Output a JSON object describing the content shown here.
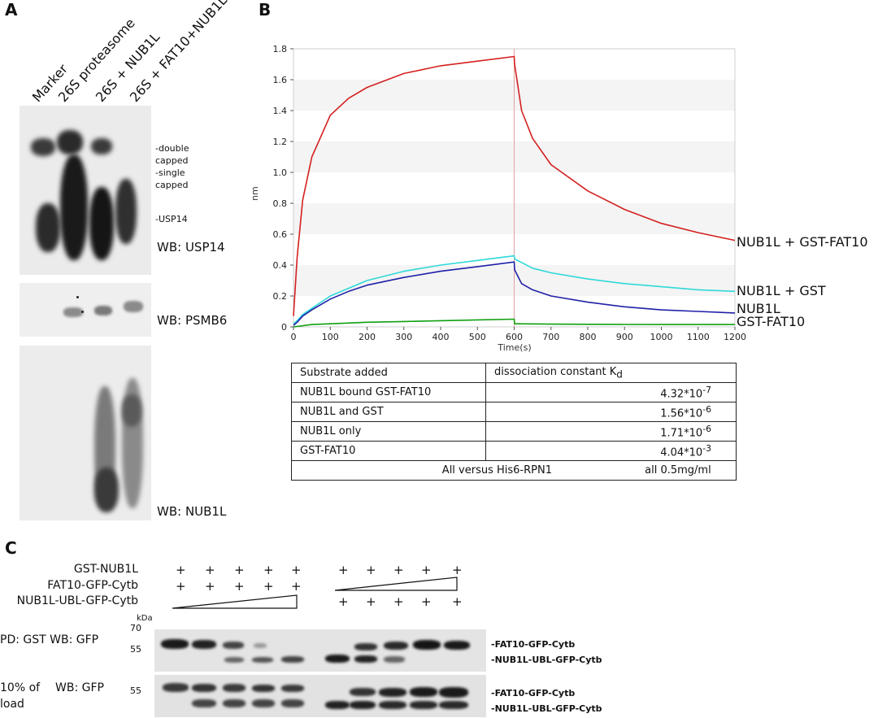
{
  "panel_a": {
    "letter": "A",
    "lanes": [
      "Marker",
      "26S proteasome",
      "26S + NUB1L",
      "26S + FAT10+NUB1L"
    ],
    "blots": [
      {
        "wb_label": "WB: USP14",
        "annotations": [
          "-double",
          "capped",
          "-single",
          "capped",
          "-USP14"
        ]
      },
      {
        "wb_label": "WB: PSMB6"
      },
      {
        "wb_label": "WB: NUB1L"
      }
    ]
  },
  "panel_b": {
    "letter": "B",
    "chart_data": {
      "type": "line",
      "title": "",
      "xlabel": "Time(s)",
      "ylabel": "nm",
      "xlim": [
        0,
        1200
      ],
      "ylim": [
        0,
        1.8
      ],
      "x_ticks": [
        "0",
        "100",
        "200",
        "300",
        "400",
        "500",
        "600",
        "700",
        "800",
        "900",
        "1000",
        "1100",
        "1200"
      ],
      "y_ticks": [
        "0",
        "0.2",
        "0.4",
        "0.6",
        "0.8",
        "1.0",
        "1.2",
        "1.4",
        "1.6",
        "1.8"
      ],
      "annotation_x": 600,
      "series": [
        {
          "name": "NUB1L + GST-FAT10",
          "color": "#d42020",
          "x": [
            0,
            10,
            25,
            50,
            100,
            150,
            200,
            300,
            400,
            500,
            600,
            601,
            620,
            650,
            700,
            800,
            900,
            1000,
            1100,
            1200
          ],
          "values": [
            0.07,
            0.45,
            0.82,
            1.1,
            1.37,
            1.48,
            1.55,
            1.64,
            1.69,
            1.72,
            1.75,
            1.7,
            1.4,
            1.22,
            1.05,
            0.88,
            0.76,
            0.67,
            0.61,
            0.56
          ]
        },
        {
          "name": "NUB1L + GST",
          "color": "#30d8d8",
          "x": [
            0,
            10,
            25,
            50,
            100,
            150,
            200,
            300,
            400,
            500,
            600,
            601,
            650,
            700,
            800,
            900,
            1000,
            1100,
            1200
          ],
          "values": [
            0.02,
            0.04,
            0.08,
            0.12,
            0.2,
            0.25,
            0.3,
            0.36,
            0.4,
            0.43,
            0.46,
            0.44,
            0.38,
            0.35,
            0.31,
            0.28,
            0.26,
            0.24,
            0.23
          ]
        },
        {
          "name": "NUB1L",
          "color": "#2020a8",
          "x": [
            0,
            10,
            25,
            50,
            100,
            150,
            200,
            300,
            400,
            500,
            600,
            601,
            620,
            650,
            700,
            800,
            900,
            1000,
            1100,
            1200
          ],
          "values": [
            0.01,
            0.03,
            0.07,
            0.11,
            0.18,
            0.23,
            0.27,
            0.32,
            0.36,
            0.39,
            0.42,
            0.37,
            0.28,
            0.24,
            0.2,
            0.16,
            0.13,
            0.11,
            0.1,
            0.09
          ]
        },
        {
          "name": "GST-FAT10",
          "color": "#10a010",
          "x": [
            0,
            50,
            100,
            200,
            300,
            400,
            500,
            600,
            601,
            700,
            800,
            900,
            1000,
            1100,
            1200
          ],
          "values": [
            0.0,
            0.015,
            0.02,
            0.03,
            0.035,
            0.04,
            0.045,
            0.05,
            0.02,
            0.018,
            0.017,
            0.016,
            0.015,
            0.015,
            0.015
          ]
        }
      ]
    },
    "table": {
      "header_1": "Substrate added",
      "header_2": "dissociation constant K",
      "header_2_sub": "d",
      "rows": [
        {
          "substrate": "NUB1L bound GST-FAT10",
          "kd": "4.32*10",
          "exp": "-7"
        },
        {
          "substrate": "NUB1L and GST",
          "kd": "1.56*10",
          "exp": "-6"
        },
        {
          "substrate": "NUB1L only",
          "kd": "1.71*10",
          "exp": "-6"
        },
        {
          "substrate": "GST-FAT10",
          "kd": "4.04*10",
          "exp": "-3"
        }
      ],
      "footer_left": "All versus His6-RPN1",
      "footer_right": "all 0.5mg/ml"
    }
  },
  "panel_c": {
    "letter": "C",
    "rows": [
      "GST-NUB1L",
      "FAT10-GFP-Cytb",
      "NUB1L-UBL-GFP-Cytb"
    ],
    "plus": "+",
    "kda_label": "kDa",
    "marker_70": "70",
    "marker_55": "55",
    "blot1_label": "PD: GST WB: GFP",
    "blot2_label_a": "10% of",
    "blot2_label_b": "load",
    "blot2_wb": "WB: GFP",
    "band_fat10": "-FAT10-GFP-Cytb",
    "band_ubl": "-NUB1L-UBL-GFP-Cytb"
  }
}
